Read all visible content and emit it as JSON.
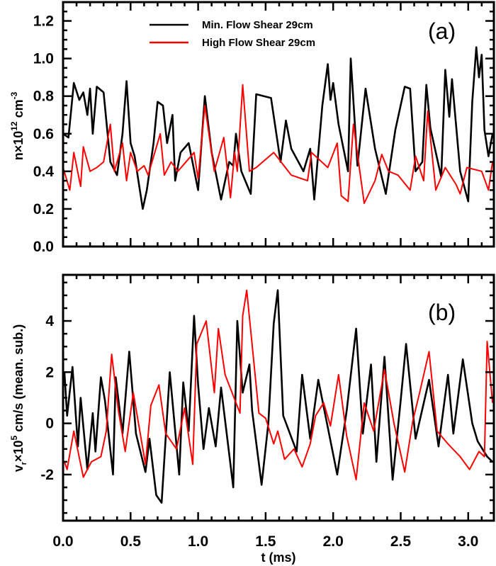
{
  "chart_data": [
    {
      "type": "line",
      "panel_label": "(a)",
      "ylabel": {
        "base": "n×10",
        "exp1": "12",
        "mid": " cm",
        "exp2": "-3"
      },
      "xlim": [
        0,
        3.19
      ],
      "ylim": [
        0,
        1.3
      ],
      "yticks": [
        "0.0",
        "0.2",
        "0.4",
        "0.6",
        "0.8",
        "1.0",
        "1.2"
      ],
      "grid": false,
      "legend_position": "top-left",
      "series": [
        {
          "name": "Min. Flow Shear 29cm",
          "color": "#000000",
          "x": [
            0,
            0.04,
            0.08,
            0.12,
            0.15,
            0.18,
            0.2,
            0.22,
            0.25,
            0.3,
            0.35,
            0.4,
            0.44,
            0.47,
            0.5,
            0.53,
            0.59,
            0.62,
            0.67,
            0.7,
            0.74,
            0.77,
            0.81,
            0.83,
            0.87,
            0.93,
            1.0,
            1.05,
            1.1,
            1.17,
            1.23,
            1.26,
            1.28,
            1.32,
            1.39,
            1.43,
            1.54,
            1.61,
            1.65,
            1.69,
            1.78,
            1.83,
            1.86,
            1.92,
            1.96,
            1.98,
            2.0,
            2.04,
            2.11,
            2.13,
            2.18,
            2.24,
            2.31,
            2.39,
            2.46,
            2.53,
            2.57,
            2.61,
            2.66,
            2.69,
            2.72,
            2.8,
            2.83,
            2.86,
            2.88,
            2.94,
            3.0,
            3.03,
            3.06,
            3.08,
            3.1,
            3.12,
            3.15,
            3.18
          ],
          "y": [
            0.6,
            0.58,
            0.87,
            0.78,
            0.82,
            0.7,
            0.84,
            0.6,
            0.85,
            0.82,
            0.45,
            0.38,
            0.6,
            0.88,
            0.55,
            0.48,
            0.2,
            0.3,
            0.55,
            0.77,
            0.75,
            0.55,
            0.7,
            0.35,
            0.5,
            0.55,
            0.3,
            0.8,
            0.5,
            0.25,
            0.45,
            0.43,
            0.6,
            0.4,
            0.28,
            0.81,
            0.79,
            0.45,
            0.67,
            0.52,
            0.4,
            0.52,
            0.25,
            0.75,
            0.97,
            0.78,
            0.87,
            0.65,
            0.4,
            1.0,
            0.43,
            0.84,
            0.52,
            0.28,
            0.62,
            0.85,
            0.84,
            0.4,
            0.45,
            0.86,
            0.63,
            0.37,
            0.94,
            0.69,
            0.89,
            0.4,
            0.24,
            0.77,
            1.06,
            0.9,
            1.02,
            0.62,
            0.48,
            0.6
          ]
        },
        {
          "name": "High Flow Shear 29cm",
          "color": "#ff0000",
          "x": [
            0,
            0.05,
            0.08,
            0.13,
            0.15,
            0.2,
            0.25,
            0.3,
            0.35,
            0.38,
            0.44,
            0.47,
            0.5,
            0.55,
            0.6,
            0.63,
            0.72,
            0.75,
            0.8,
            0.85,
            0.97,
            1.0,
            1.05,
            1.12,
            1.19,
            1.24,
            1.27,
            1.29,
            1.33,
            1.38,
            1.43,
            1.56,
            1.69,
            1.81,
            1.84,
            1.96,
            2.03,
            2.06,
            2.11,
            2.15,
            2.23,
            2.31,
            2.36,
            2.41,
            2.48,
            2.57,
            2.61,
            2.67,
            2.7,
            2.76,
            2.83,
            2.91,
            2.94,
            2.99,
            3.1,
            3.15,
            3.18
          ],
          "y": [
            0.42,
            0.3,
            0.5,
            0.32,
            0.53,
            0.4,
            0.42,
            0.45,
            0.65,
            0.4,
            0.55,
            0.35,
            0.5,
            0.4,
            0.43,
            0.38,
            0.6,
            0.38,
            0.45,
            0.4,
            0.5,
            0.36,
            0.75,
            0.4,
            0.58,
            0.26,
            0.5,
            0.4,
            0.86,
            0.4,
            0.42,
            0.5,
            0.38,
            0.35,
            0.5,
            0.42,
            0.55,
            0.27,
            0.24,
            0.65,
            0.23,
            0.35,
            0.49,
            0.4,
            0.38,
            0.3,
            0.48,
            0.35,
            0.72,
            0.3,
            0.42,
            0.33,
            0.28,
            0.42,
            0.4,
            0.3,
            0.45
          ]
        }
      ]
    },
    {
      "type": "line",
      "panel_label": "(b)",
      "xlabel": "t (ms)",
      "ylabel": {
        "base": "v",
        "sub": "r",
        "mid": "×10",
        "exp1": "5",
        "rest": " cm/s (mean. sub.)"
      },
      "xlim": [
        0,
        3.19
      ],
      "ylim": [
        -3.8,
        5.8
      ],
      "xticks": [
        "0.0",
        "0.5",
        "1.0",
        "1.5",
        "2.0",
        "2.5",
        "3.0"
      ],
      "yticks": [
        "-2",
        "0",
        "2",
        "4"
      ],
      "grid": false,
      "series": [
        {
          "color": "#000000",
          "x": [
            0.01,
            0.03,
            0.07,
            0.11,
            0.13,
            0.18,
            0.22,
            0.24,
            0.28,
            0.31,
            0.37,
            0.39,
            0.44,
            0.49,
            0.54,
            0.61,
            0.64,
            0.69,
            0.73,
            0.79,
            0.86,
            0.89,
            0.93,
            0.97,
            1.0,
            1.04,
            1.08,
            1.13,
            1.17,
            1.26,
            1.29,
            1.33,
            1.38,
            1.4,
            1.47,
            1.52,
            1.56,
            1.59,
            1.63,
            1.73,
            1.77,
            1.83,
            1.89,
            2.03,
            2.1,
            2.17,
            2.22,
            2.28,
            2.32,
            2.38,
            2.44,
            2.5,
            2.54,
            2.61,
            2.71,
            2.78,
            2.85,
            2.89,
            2.96,
            3.03,
            3.07,
            3.14,
            3.18
          ],
          "y": [
            2.0,
            0.3,
            2.2,
            -0.9,
            1.0,
            -1.8,
            0.4,
            -1.1,
            1.8,
            0.9,
            -2.0,
            1.8,
            -0.4,
            2.8,
            -0.4,
            -1.9,
            -0.6,
            -2.8,
            -3.1,
            2.0,
            -2.0,
            1.6,
            -0.3,
            4.2,
            1.5,
            -1.0,
            0.6,
            -0.9,
            1.4,
            -2.5,
            4.0,
            1.2,
            2.3,
            0.5,
            -2.4,
            0,
            3.9,
            5.2,
            0.3,
            -1.1,
            1.9,
            -0.6,
            1.7,
            -2.0,
            0.5,
            3.7,
            -0.4,
            2.3,
            -1.5,
            2.6,
            -2.2,
            0.9,
            3.1,
            -0.6,
            1.7,
            -0.9,
            1.9,
            -0.4,
            2.5,
            0,
            -0.7,
            -1.3,
            -1.5
          ]
        },
        {
          "color": "#ff0000",
          "x": [
            0.01,
            0.03,
            0.08,
            0.15,
            0.21,
            0.28,
            0.32,
            0.36,
            0.41,
            0.46,
            0.52,
            0.61,
            0.65,
            0.71,
            0.76,
            0.84,
            0.9,
            0.96,
            0.99,
            1.06,
            1.12,
            1.15,
            1.2,
            1.31,
            1.33,
            1.36,
            1.45,
            1.5,
            1.56,
            1.59,
            1.64,
            1.71,
            1.77,
            1.83,
            1.87,
            1.93,
            1.98,
            2.04,
            2.1,
            2.17,
            2.23,
            2.3,
            2.38,
            2.45,
            2.53,
            2.59,
            2.64,
            2.71,
            2.77,
            2.85,
            2.94,
            3.01,
            3.08,
            3.12,
            3.14,
            3.18
          ],
          "y": [
            -1.5,
            -1.8,
            -0.3,
            -2.1,
            -1.5,
            -1.3,
            -0.3,
            2.7,
            0.5,
            -1.1,
            1.2,
            -1.6,
            0.7,
            1.5,
            -0.4,
            -1.0,
            0.6,
            -1.6,
            3.1,
            4.0,
            1.2,
            3.7,
            1.9,
            0.4,
            4.2,
            5.2,
            0.4,
            0.2,
            -0.8,
            -0.3,
            -1.4,
            -1.0,
            -1.7,
            -0.8,
            0.3,
            0.8,
            -0.1,
            1.9,
            -0.5,
            -2.2,
            0.8,
            -0.3,
            2.1,
            0,
            -1.9,
            0.1,
            1.2,
            2.8,
            -0.3,
            -0.8,
            -1.3,
            -1.8,
            -1.1,
            -1.3,
            3.2,
            0.8
          ]
        }
      ]
    }
  ]
}
